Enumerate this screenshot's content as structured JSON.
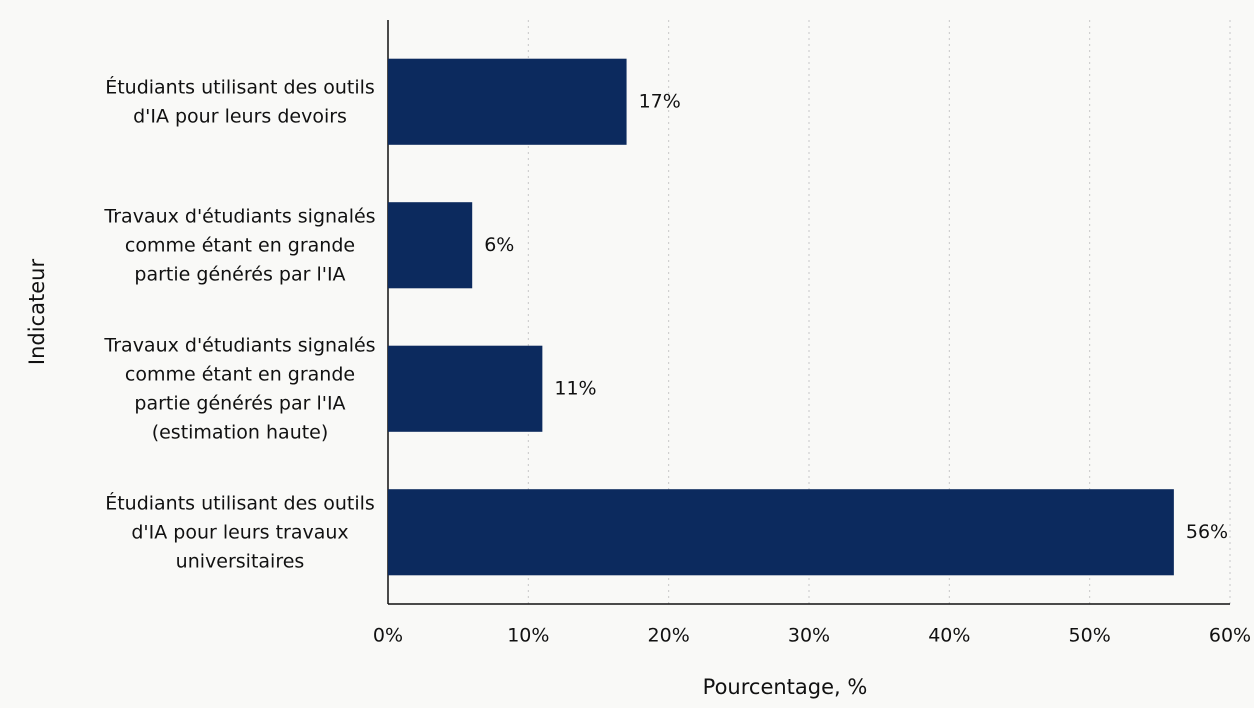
{
  "chart_data": {
    "type": "bar",
    "orientation": "horizontal",
    "categories": [
      "Étudiants utilisant des outils d'IA pour leurs devoirs",
      "Travaux d'étudiants signalés comme étant en grande partie générés par l'IA",
      "Travaux d'étudiants signalés comme étant en grande partie générés par l'IA (estimation haute)",
      "Étudiants utilisant des outils d'IA pour leurs travaux universitaires"
    ],
    "values": [
      17,
      6,
      11,
      56
    ],
    "value_labels": [
      "17%",
      "6%",
      "11%",
      "56%"
    ],
    "color": "#0c2a5e",
    "xlabel": "Pourcentage, %",
    "ylabel": "Indicateur",
    "xlim": [
      0,
      60
    ],
    "xticks": [
      {
        "value": 0,
        "label": "0%"
      },
      {
        "value": 10,
        "label": "10%"
      },
      {
        "value": 20,
        "label": "20%"
      },
      {
        "value": 30,
        "label": "30%"
      },
      {
        "value": 40,
        "label": "40%"
      },
      {
        "value": 50,
        "label": "50%"
      },
      {
        "value": 60,
        "label": "60%"
      }
    ],
    "grid": true
  }
}
